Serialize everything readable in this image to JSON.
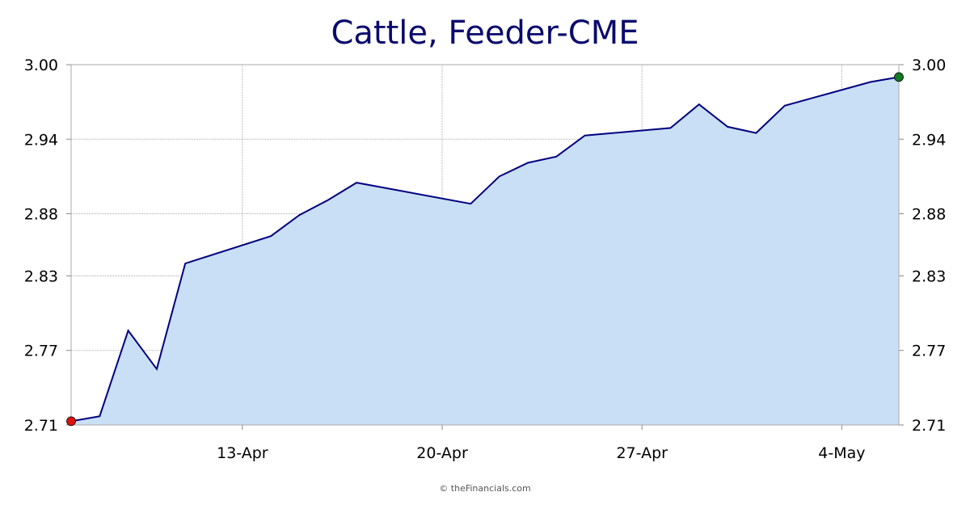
{
  "chart_data": {
    "type": "area",
    "title": "Cattle, Feeder-CME",
    "xlabel": "",
    "ylabel": "",
    "x": [
      "2026-04-07",
      "2026-04-08",
      "2026-04-09",
      "2026-04-10",
      "2026-04-11",
      "2026-04-14",
      "2026-04-15",
      "2026-04-16",
      "2026-04-17",
      "2026-04-21",
      "2026-04-22",
      "2026-04-23",
      "2026-04-24",
      "2026-04-25",
      "2026-04-28",
      "2026-04-29",
      "2026-04-30",
      "2026-05-01",
      "2026-05-02",
      "2026-05-05",
      "2026-05-06"
    ],
    "series": [
      {
        "values": [
          2.713,
          2.717,
          2.786,
          2.755,
          2.84,
          2.862,
          2.879,
          2.891,
          2.905,
          2.888,
          2.91,
          2.921,
          2.926,
          2.943,
          2.949,
          2.968,
          2.95,
          2.945,
          2.967,
          2.986,
          2.99
        ]
      }
    ],
    "ylim": [
      2.71,
      3.0
    ],
    "y_ticks": [
      "2.71",
      "2.77",
      "2.83",
      "2.88",
      "2.94",
      "3.00"
    ],
    "x_tick_labels": [
      {
        "date": "2026-04-13",
        "label": "13-Apr"
      },
      {
        "date": "2026-04-20",
        "label": "20-Apr"
      },
      {
        "date": "2026-04-27",
        "label": "27-Apr"
      },
      {
        "date": "2026-05-04",
        "label": "4-May"
      }
    ],
    "grid": true,
    "colors": {
      "line": "#000080",
      "fill": "#c9dff6",
      "grid": "#aaaaaa",
      "start_marker": "#dd1111",
      "end_marker": "#117a22"
    }
  },
  "footer": {
    "credit": "© theFinancials.com"
  }
}
